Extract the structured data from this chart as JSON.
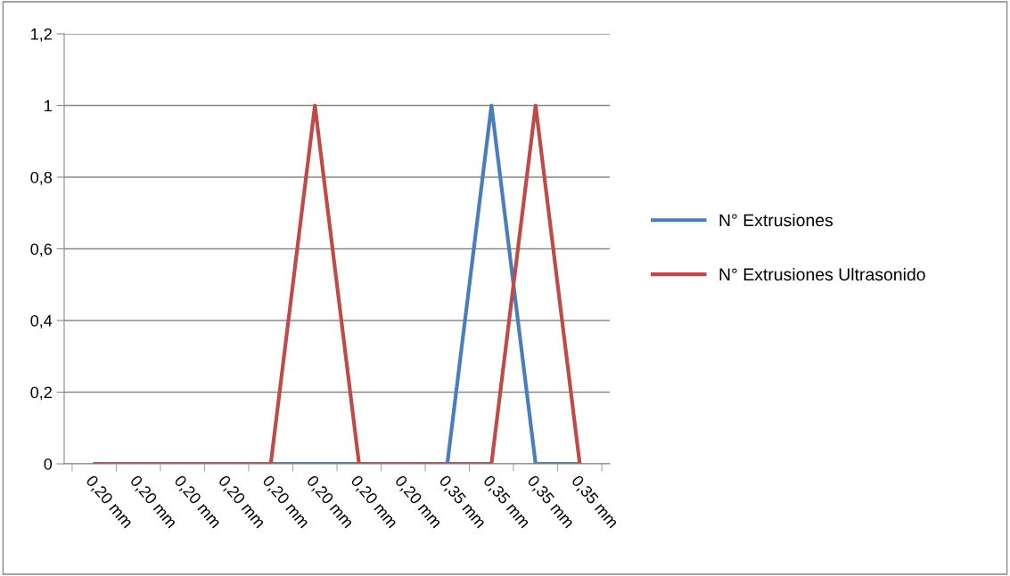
{
  "chart_data": {
    "type": "line",
    "categories": [
      "0,20 mm",
      "0,20 mm",
      "0,20 mm",
      "0,20 mm",
      "0,20 mm",
      "0,20 mm",
      "0,20 mm",
      "0,20 mm",
      "0,35 mm",
      "0,35 mm",
      "0,35 mm",
      "0,35 mm"
    ],
    "series": [
      {
        "name": "N° Extrusiones",
        "color": "#4a7ebb",
        "values": [
          null,
          null,
          null,
          0,
          0,
          0,
          0,
          0,
          0,
          1,
          0,
          0
        ]
      },
      {
        "name": "N° Extrusiones Ultrasonido",
        "color": "#be4b48",
        "values": [
          0,
          0,
          0,
          0,
          0,
          1,
          0,
          0,
          0,
          0,
          1,
          0
        ]
      }
    ],
    "ylim": [
      0,
      1.2
    ],
    "yticks": [
      {
        "value": 0,
        "label": "0"
      },
      {
        "value": 0.2,
        "label": "0,2"
      },
      {
        "value": 0.4,
        "label": "0,4"
      },
      {
        "value": 0.6,
        "label": "0,6"
      },
      {
        "value": 0.8,
        "label": "0,8"
      },
      {
        "value": 1,
        "label": "1"
      },
      {
        "value": 1.2,
        "label": "1,2"
      }
    ],
    "grid": "y",
    "legend": "right",
    "marker": "none",
    "line_style": "solid"
  }
}
